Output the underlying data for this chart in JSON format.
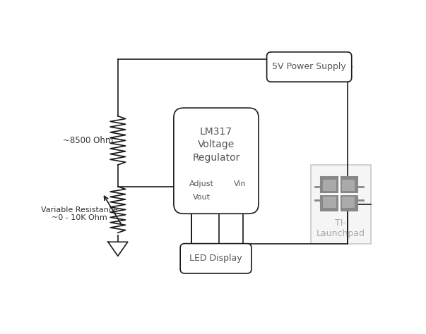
{
  "bg_color": "#ffffff",
  "line_color": "#1a1a1a",
  "gray_color": "#888888",
  "light_gray": "#c8c8c8",
  "text_dark": "#555555",
  "text_light": "#aaaaaa",
  "lm317_label": "LM317\nVoltage\nRegulator",
  "power_label": "5V Power Supply",
  "led_label": "LED Display",
  "ti_label": "TI-\nLaunchpad",
  "adjust_label": "Adjust",
  "vin_label": "Vin",
  "vout_label": "Vout",
  "r1_label": "~8500 Ohm",
  "r2_label": "Variable Resistance\n~0 - 10K Ohm",
  "lw": 1.2
}
